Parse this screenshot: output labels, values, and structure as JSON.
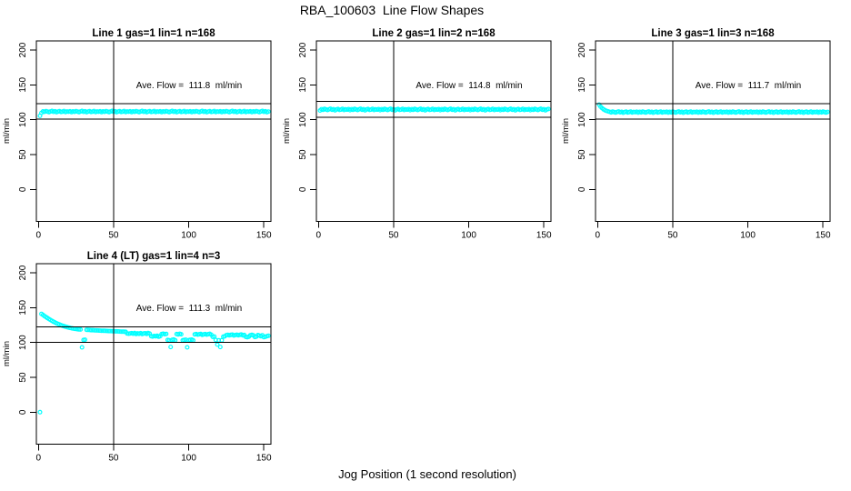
{
  "title": "RBA_100603  Line Flow Shapes",
  "xlabel": "Jog Position (1 second resolution)",
  "ylabel": "ml/min",
  "colors": {
    "marker": "#00FFFF",
    "axis": "#000000",
    "background": "#FFFFFF"
  },
  "chart_data": [
    {
      "type": "scatter",
      "title": "Line 1 gas=1 lin=1 n=168",
      "annotation": "Ave. Flow =  111.8  ml/min",
      "ave_flow": 111.8,
      "ylabel": "ml/min",
      "x_ticks": [
        0,
        50,
        100,
        150
      ],
      "y_ticks": [
        0,
        50,
        100,
        150,
        200
      ],
      "ylim": [
        0,
        200
      ],
      "xlim": [
        0,
        155
      ],
      "grid": false,
      "legend": false,
      "hlines": [
        100.6,
        123.0
      ],
      "vline": 50,
      "x_first": 1,
      "x_step": 1,
      "y": [
        105.5,
        109.8,
        111.9,
        111.2,
        112.3,
        111.6,
        110.9,
        111.8,
        112.5,
        111.3,
        112,
        110.7,
        111.7,
        112.2,
        111.1,
        111.5,
        112.4,
        111,
        111.8,
        111.4,
        112.1,
        110.8,
        111.9,
        111.2,
        112.3,
        111.6,
        110.9,
        111.8,
        112.5,
        111.3,
        112,
        110.7,
        111.7,
        112.2,
        111.1,
        111.5,
        112.4,
        111,
        111.8,
        111.4,
        112.1,
        110.8,
        111.9,
        111.2,
        112.3,
        111.6,
        110.9,
        111.8,
        112.5,
        111.3,
        112,
        110.7,
        111.7,
        112.2,
        111.1,
        111.5,
        112.4,
        111,
        111.8,
        111.4,
        112.1,
        110.8,
        111.9,
        111.2,
        112.3,
        111.6,
        110.9,
        111.8,
        112.5,
        111.3,
        112,
        110.7,
        111.7,
        112.2,
        111.1,
        111.5,
        112.4,
        111,
        111.8,
        111.4,
        112.1,
        110.8,
        111.9,
        111.2,
        112.3,
        111.6,
        110.9,
        111.8,
        112.5,
        111.3,
        112,
        110.7,
        111.7,
        112.2,
        111.1,
        111.5,
        112.4,
        111,
        111.8,
        111.4,
        112.1,
        110.8,
        111.9,
        111.2,
        112.3,
        111.6,
        110.9,
        111.8,
        112.5,
        111.3,
        112,
        110.7,
        111.7,
        112.2,
        111.1,
        111.5,
        112.4,
        111,
        111.8,
        111.4,
        112.1,
        110.8,
        111.9,
        111.2,
        112.3,
        111.6,
        110.9,
        111.8,
        112.5,
        111.3,
        112,
        110.7,
        111.7,
        112.2,
        111.1,
        111.5,
        112.4,
        111,
        111.8,
        111.4,
        112.1,
        110.8,
        111.9,
        111.2,
        112.3,
        111.6,
        110.9,
        111.8,
        112.5,
        111.3,
        112,
        110.7,
        111.7
      ]
    },
    {
      "type": "scatter",
      "title": "Line 2 gas=1 lin=2 n=168",
      "annotation": "Ave. Flow =  114.8  ml/min",
      "ave_flow": 114.8,
      "ylabel": "ml/min",
      "x_ticks": [
        0,
        50,
        100,
        150
      ],
      "y_ticks": [
        0,
        50,
        100,
        150,
        200
      ],
      "ylim": [
        0,
        200
      ],
      "xlim": [
        0,
        155
      ],
      "grid": false,
      "legend": false,
      "hlines": [
        103.3,
        126.3
      ],
      "vline": 50,
      "x_first": 1,
      "x_step": 1,
      "y": [
        113.2,
        115,
        114.1,
        115.5,
        114.6,
        113.8,
        114.9,
        115.7,
        114.3,
        115.1,
        113.5,
        114.7,
        115.3,
        114,
        114.5,
        115.6,
        113.9,
        114.9,
        114.4,
        115.2,
        113.7,
        115,
        114.1,
        115.5,
        114.6,
        113.8,
        114.9,
        115.7,
        114.3,
        115.1,
        113.5,
        114.7,
        115.3,
        114,
        114.5,
        115.6,
        113.9,
        114.9,
        114.4,
        115.2,
        113.7,
        115,
        114.1,
        115.5,
        114.6,
        113.8,
        114.9,
        115.7,
        114.3,
        115.1,
        113.5,
        114.7,
        115.3,
        114,
        114.5,
        115.6,
        113.9,
        114.9,
        114.4,
        115.2,
        113.7,
        115,
        114.1,
        115.5,
        114.6,
        113.8,
        114.9,
        115.7,
        114.3,
        115.1,
        113.5,
        114.7,
        115.3,
        114,
        114.5,
        115.6,
        113.9,
        114.9,
        114.4,
        115.2,
        113.7,
        115,
        114.1,
        115.5,
        114.6,
        113.8,
        114.9,
        115.7,
        114.3,
        115.1,
        113.5,
        114.7,
        115.3,
        114,
        114.5,
        115.6,
        113.9,
        114.9,
        114.4,
        115.2,
        113.7,
        115,
        114.1,
        115.5,
        114.6,
        113.8,
        114.9,
        115.7,
        114.3,
        115.1,
        113.5,
        114.7,
        115.3,
        114,
        114.5,
        115.6,
        113.9,
        114.9,
        114.4,
        115.2,
        113.7,
        115,
        114.1,
        115.5,
        114.6,
        113.8,
        114.9,
        115.7,
        114.3,
        115.1,
        113.5,
        114.7,
        115.3,
        114,
        114.5,
        115.6,
        113.9,
        114.9,
        114.4,
        115.2,
        113.7,
        115,
        114.1,
        115.5,
        114.6,
        113.8,
        114.9,
        115.7,
        114.3,
        115.1,
        113.5,
        114.7,
        115.3
      ]
    },
    {
      "type": "scatter",
      "title": "Line 3 gas=1 lin=3 n=168",
      "annotation": "Ave. Flow =  111.7  ml/min",
      "ave_flow": 111.7,
      "ylabel": "ml/min",
      "x_ticks": [
        0,
        50,
        100,
        150
      ],
      "y_ticks": [
        0,
        50,
        100,
        150,
        200
      ],
      "ylim": [
        0,
        200
      ],
      "xlim": [
        0,
        155
      ],
      "grid": false,
      "legend": false,
      "hlines": [
        100.5,
        122.9
      ],
      "vline": 50,
      "x_first": 1,
      "x_step": 1,
      "y": [
        121.5,
        118.5,
        116.5,
        114.8,
        113.5,
        112.5,
        111.9,
        111.2,
        110.5,
        111.6,
        110.9,
        110.2,
        111.1,
        111.8,
        110.6,
        111.3,
        110,
        111,
        111.5,
        110.4,
        110.8,
        111.7,
        110.3,
        111.1,
        110.7,
        111.4,
        110.1,
        111.2,
        110.5,
        111.6,
        110.9,
        110.2,
        111.1,
        111.8,
        110.6,
        111.3,
        110,
        111,
        111.5,
        110.4,
        110.8,
        111.7,
        110.3,
        111.1,
        110.7,
        111.4,
        110.1,
        111.2,
        110.5,
        111.6,
        110.9,
        110.2,
        111.1,
        111.8,
        110.6,
        111.3,
        110,
        111,
        111.5,
        110.4,
        110.8,
        111.7,
        110.3,
        111.1,
        110.7,
        111.4,
        110.1,
        111.2,
        110.5,
        111.6,
        110.9,
        110.2,
        111.1,
        111.8,
        110.6,
        111.3,
        110,
        111,
        111.5,
        110.4,
        110.8,
        111.7,
        110.3,
        111.1,
        110.7,
        111.4,
        110.1,
        111.2,
        110.5,
        111.6,
        110.9,
        110.2,
        111.1,
        111.8,
        110.6,
        111.3,
        110,
        111,
        111.5,
        110.4,
        110.8,
        111.7,
        110.3,
        111.1,
        110.7,
        111.4,
        110.1,
        111.2,
        110.5,
        111.6,
        110.9,
        110.2,
        111.1,
        111.8,
        110.6,
        111.3,
        110,
        111,
        111.5,
        110.4,
        110.8,
        111.7,
        110.3,
        111.1,
        110.7,
        111.4,
        110.1,
        111.2,
        110.5,
        111.6,
        110.9,
        110.2,
        111.1,
        111.8,
        110.6,
        111.3,
        110,
        111,
        111.5,
        110.4,
        110.8,
        111.7,
        110.3,
        111.1,
        110.7,
        111.4,
        110.1,
        111.2,
        110.5,
        111.6,
        110.9,
        110.2,
        111.1
      ]
    },
    {
      "type": "scatter",
      "title": "Line 4 (LT) gas=1 lin=4 n=3",
      "annotation": "Ave. Flow =  111.3  ml/min",
      "ave_flow": 111.3,
      "ylabel": "ml/min",
      "x_ticks": [
        0,
        50,
        100,
        150
      ],
      "y_ticks": [
        0,
        50,
        100,
        150,
        200
      ],
      "ylim": [
        0,
        200
      ],
      "xlim": [
        0,
        155
      ],
      "grid": false,
      "legend": false,
      "hlines": [
        100.2,
        122.4
      ],
      "vline": 50,
      "x_first": 1,
      "x_step": 1,
      "y": [
        0,
        141,
        139.4,
        137.9,
        136.4,
        135,
        133.6,
        132.3,
        131,
        129.8,
        128.7,
        127.6,
        126.6,
        125.7,
        124.8,
        124,
        123.3,
        122.6,
        122,
        121.4,
        120.9,
        120.4,
        120,
        119.6,
        119.3,
        119,
        118.7,
        118.5,
        93,
        103.5,
        104,
        118.2,
        118,
        117.9,
        117.7,
        117.6,
        117.5,
        117.3,
        117.2,
        117.1,
        117,
        116.9,
        116.8,
        116.7,
        116.6,
        116.5,
        116.4,
        116.3,
        116.2,
        116.1,
        116,
        115.9,
        115.8,
        115.7,
        115.6,
        115.5,
        115.4,
        115.3,
        113,
        112.5,
        112.9,
        113.3,
        112.6,
        113.5,
        112.2,
        113.1,
        112.4,
        113.4,
        112,
        112.8,
        113.2,
        112.3,
        113.6,
        112.7,
        109,
        108.5,
        109.3,
        108.8,
        109.6,
        108.3,
        109.1,
        112.1,
        112.6,
        111.9,
        112.3,
        103.5,
        103,
        93.5,
        103.8,
        104.2,
        103.2,
        112,
        111.5,
        112.4,
        111.8,
        103,
        103.5,
        104,
        93,
        103.3,
        103.8,
        104.1,
        103.1,
        111.6,
        112,
        111.2,
        111.8,
        112.2,
        111,
        111.6,
        112.1,
        111.3,
        111.9,
        112.4,
        111.1,
        108,
        108.5,
        103.5,
        97,
        103,
        93.5,
        103.2,
        108.2,
        108.8,
        110.5,
        111,
        110.2,
        110.8,
        111.2,
        110,
        110.6,
        111.1,
        110.3,
        110.9,
        111.4,
        110.1,
        110.7,
        108,
        107.5,
        108.3,
        110.4,
        110.9,
        110.2,
        107.8,
        108.4,
        110.6,
        110,
        108.9,
        110.3,
        107.6,
        108.1,
        109,
        109.5
      ]
    }
  ]
}
